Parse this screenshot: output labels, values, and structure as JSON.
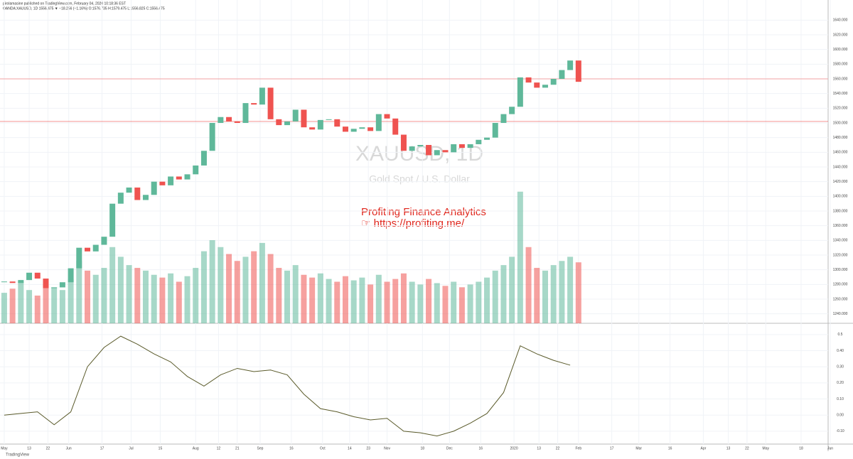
{
  "header": {
    "publisher": "pirolamasine published on TradingView.com, February 04, 2020 10:18:36 EST",
    "symbol": "OANDA:XAUUSD, 1D 1556.475 ▼ −18.256 (−1.16%) O:1576.735 H:1579.475 L:1556.825 C:1556.475"
  },
  "watermark": {
    "symbol": "XAUUSD, 1D",
    "description": "Gold Spot / U.S. Dollar"
  },
  "annotation": {
    "line1": "Profiting Finance Analytics",
    "line2": "☞ https://profiting.me/"
  },
  "footer": "TradingView",
  "chart_data": {
    "type": "candlestick",
    "xlim": [
      -1,
      397
    ],
    "x_labels": [
      {
        "value": 0,
        "label": "May"
      },
      {
        "value": 12,
        "label": "13"
      },
      {
        "value": 21,
        "label": "22"
      },
      {
        "value": 31,
        "label": "Jun"
      },
      {
        "value": 47,
        "label": "17"
      },
      {
        "value": 61,
        "label": "Jul"
      },
      {
        "value": 75,
        "label": "15"
      },
      {
        "value": 92,
        "label": "Aug"
      },
      {
        "value": 103,
        "label": "12"
      },
      {
        "value": 112,
        "label": "21"
      },
      {
        "value": 123,
        "label": "Sep"
      },
      {
        "value": 138,
        "label": "16"
      },
      {
        "value": 153,
        "label": "Oct"
      },
      {
        "value": 166,
        "label": "14"
      },
      {
        "value": 175,
        "label": "23"
      },
      {
        "value": 184,
        "label": "Nov"
      },
      {
        "value": 201,
        "label": "18"
      },
      {
        "value": 214,
        "label": "Dec"
      },
      {
        "value": 229,
        "label": "16"
      },
      {
        "value": 245,
        "label": "2020"
      },
      {
        "value": 257,
        "label": "13"
      },
      {
        "value": 266,
        "label": "22"
      },
      {
        "value": 276,
        "label": "Feb"
      },
      {
        "value": 292,
        "label": "17"
      },
      {
        "value": 305,
        "label": "Mar"
      },
      {
        "value": 320,
        "label": "16"
      },
      {
        "value": 336,
        "label": "Apr"
      },
      {
        "value": 348,
        "label": "13"
      },
      {
        "value": 357,
        "label": "22"
      },
      {
        "value": 366,
        "label": "May"
      },
      {
        "value": 383,
        "label": "18"
      },
      {
        "value": 397,
        "label": "Jun"
      }
    ],
    "x": [
      0,
      4,
      8,
      12,
      16,
      20,
      24,
      28,
      32,
      36,
      40,
      44,
      48,
      52,
      56,
      60,
      64,
      68,
      72,
      76,
      80,
      84,
      88,
      92,
      96,
      100,
      104,
      108,
      112,
      116,
      120,
      124,
      128,
      132,
      136,
      140,
      144,
      148,
      152,
      156,
      160,
      164,
      168,
      172,
      176,
      180,
      184,
      188,
      192,
      196,
      200,
      204,
      208,
      212,
      216,
      220,
      224,
      228,
      232,
      236,
      240,
      244,
      248,
      252,
      256,
      260,
      264,
      268,
      272,
      276
    ],
    "close": [
      1284,
      1282,
      1286,
      1296,
      1288,
      1275,
      1276,
      1283,
      1302,
      1330,
      1325,
      1334,
      1345,
      1390,
      1405,
      1412,
      1395,
      1402,
      1420,
      1415,
      1427,
      1423,
      1430,
      1442,
      1462,
      1500,
      1508,
      1502,
      1500,
      1527,
      1525,
      1548,
      1505,
      1497,
      1502,
      1518,
      1494,
      1491,
      1504,
      1505,
      1495,
      1488,
      1492,
      1494,
      1489,
      1512,
      1506,
      1484,
      1462,
      1468,
      1470,
      1456,
      1463,
      1460,
      1471,
      1466,
      1471,
      1477,
      1480,
      1500,
      1512,
      1522,
      1562,
      1555,
      1548,
      1552,
      1560,
      1572,
      1585,
      1556
    ],
    "volume": [
      22,
      25,
      30,
      24,
      20,
      28,
      26,
      24,
      32,
      45,
      38,
      35,
      40,
      55,
      48,
      42,
      40,
      38,
      35,
      33,
      36,
      30,
      34,
      40,
      52,
      60,
      55,
      50,
      45,
      48,
      52,
      58,
      50,
      40,
      38,
      42,
      35,
      33,
      36,
      32,
      30,
      34,
      31,
      33,
      28,
      35,
      30,
      32,
      36,
      30,
      28,
      32,
      29,
      27,
      30,
      26,
      28,
      30,
      33,
      38,
      42,
      48,
      95,
      55,
      40,
      38,
      42,
      45,
      48,
      44
    ],
    "volumelim": [
      0,
      100
    ],
    "ylim": [
      1230,
      1650
    ],
    "yticks": [
      {
        "value": 1240,
        "label": "1240.000"
      },
      {
        "value": 1260,
        "label": "1260.000"
      },
      {
        "value": 1280,
        "label": "1280.000"
      },
      {
        "value": 1300,
        "label": "1300.000"
      },
      {
        "value": 1320,
        "label": "1320.000"
      },
      {
        "value": 1340,
        "label": "1340.000"
      },
      {
        "value": 1360,
        "label": "1360.000"
      },
      {
        "value": 1380,
        "label": "1380.000"
      },
      {
        "value": 1400,
        "label": "1400.000"
      },
      {
        "value": 1420,
        "label": "1420.000"
      },
      {
        "value": 1440,
        "label": "1440.000"
      },
      {
        "value": 1460,
        "label": "1460.000"
      },
      {
        "value": 1480,
        "label": "1480.000"
      },
      {
        "value": 1500,
        "label": "1500.000"
      },
      {
        "value": 1520,
        "label": "1520.000"
      },
      {
        "value": 1540,
        "label": "1540.000"
      },
      {
        "value": 1560,
        "label": "1560.000"
      },
      {
        "value": 1580,
        "label": "1580.000"
      },
      {
        "value": 1600,
        "label": "1600.000"
      },
      {
        "value": 1620,
        "label": "1620.000"
      },
      {
        "value": 1640,
        "label": "1640.000"
      }
    ],
    "levels": [
      1560,
      1502
    ],
    "level_color": "#ef5350",
    "up_color": "#5fb89a",
    "down_color": "#ef5350",
    "oscillator": {
      "x": [
        0,
        8,
        16,
        24,
        32,
        40,
        48,
        56,
        64,
        72,
        80,
        88,
        96,
        104,
        112,
        120,
        128,
        136,
        144,
        152,
        160,
        168,
        176,
        184,
        192,
        200,
        208,
        216,
        224,
        232,
        240,
        248,
        256,
        264,
        272
      ],
      "values": [
        0.0,
        0.01,
        0.02,
        -0.06,
        0.02,
        0.3,
        0.42,
        0.49,
        0.44,
        0.38,
        0.33,
        0.24,
        0.18,
        0.25,
        0.29,
        0.27,
        0.28,
        0.25,
        0.13,
        0.04,
        0.02,
        -0.01,
        -0.03,
        -0.02,
        -0.1,
        -0.11,
        -0.13,
        -0.1,
        -0.05,
        0.01,
        0.14,
        0.43,
        0.38,
        0.34,
        0.31
      ],
      "color": "#5a5a2a",
      "ylim": [
        -0.18,
        0.57
      ],
      "yticks": [
        0.5,
        {
          "value": 0.4,
          "label": "0.40"
        },
        {
          "value": 0.3,
          "label": "0.30"
        },
        {
          "value": 0.2,
          "label": "0.20"
        },
        {
          "value": 0.1,
          "label": "0.10"
        },
        {
          "value": 0,
          "label": "0.00"
        },
        {
          "value": -0.1,
          "label": "-0.10"
        }
      ]
    }
  }
}
